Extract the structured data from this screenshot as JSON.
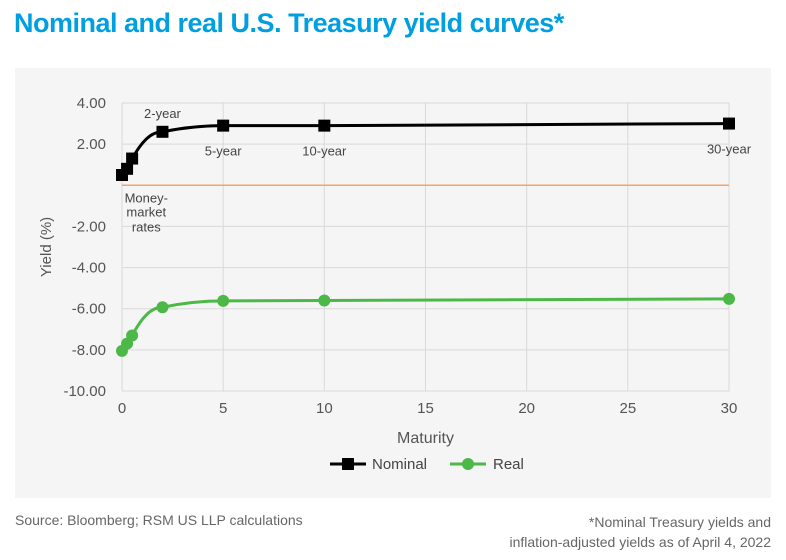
{
  "title": "Nominal and real U.S. Treasury yield curves*",
  "source": "Source: Bloomberg; RSM US LLP calculations",
  "footnote_line1": "*Nominal Treasury yields and",
  "footnote_line2": "inflation-adjusted yields as of April 4, 2022",
  "colors": {
    "title": "#009fdf",
    "nominal": "#000000",
    "real": "#4cb847",
    "zero_line": "#f4a46a"
  },
  "chart_data": {
    "type": "line",
    "xlabel": "Maturity",
    "ylabel": "Yield (%)",
    "xlim": [
      0,
      30
    ],
    "ylim": [
      -10,
      4
    ],
    "xticks": [
      0,
      5,
      10,
      15,
      20,
      25,
      30
    ],
    "xtick_labels": [
      "0",
      "5",
      "10",
      "15",
      "20",
      "25",
      "30"
    ],
    "yticks": [
      4,
      2,
      0,
      -2,
      -4,
      -6,
      -8,
      -10
    ],
    "ytick_labels": [
      "4.00",
      "2.00",
      "",
      "-2.00",
      "-4.00",
      "-6.00",
      "-8.00",
      "-10.00"
    ],
    "grid": true,
    "legend_position": "bottom-center",
    "series": [
      {
        "name": "Nominal",
        "marker": "square",
        "x": [
          0,
          0.25,
          0.5,
          2,
          5,
          10,
          30
        ],
        "y": [
          0.5,
          0.8,
          1.3,
          2.6,
          2.9,
          2.9,
          3.0
        ]
      },
      {
        "name": "Real",
        "marker": "circle",
        "x": [
          0,
          0.25,
          0.5,
          2,
          5,
          10,
          30
        ],
        "y": [
          -8.05,
          -7.7,
          -7.3,
          -5.93,
          -5.62,
          -5.6,
          -5.52
        ]
      }
    ],
    "annotations": [
      {
        "text": "2-year",
        "x": 2,
        "y": 2.6,
        "pos": "above"
      },
      {
        "text": "5-year",
        "x": 5,
        "y": 2.9,
        "pos": "below"
      },
      {
        "text": "10-year",
        "x": 10,
        "y": 2.9,
        "pos": "below"
      },
      {
        "text": "30-year",
        "x": 30,
        "y": 3.0,
        "pos": "below"
      },
      {
        "text": "Money-",
        "x": 1.2,
        "y": 0,
        "pos": "below1"
      },
      {
        "text": "market",
        "x": 1.2,
        "y": 0,
        "pos": "below2"
      },
      {
        "text": "rates",
        "x": 1.2,
        "y": 0,
        "pos": "below3"
      }
    ]
  }
}
